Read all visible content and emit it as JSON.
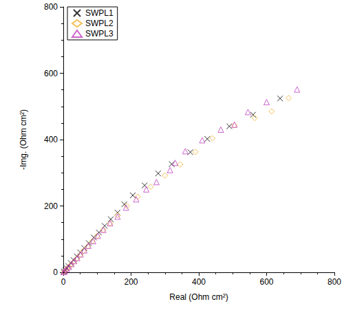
{
  "chart_data": {
    "type": "scatter",
    "x_label": "Real (Ohm cm²)",
    "y_label": "-Img. (Ohm cm²)",
    "xlim": [
      0,
      800
    ],
    "xticks": [
      0,
      200,
      400,
      600,
      800
    ],
    "ylim": [
      0,
      800
    ],
    "yticks": [
      0,
      200,
      400,
      600,
      800
    ],
    "grid": false,
    "legend": "upper left",
    "series": [
      {
        "name": "SWPL1",
        "color": "#000000",
        "marker": "x",
        "x": [
          1,
          3,
          6,
          10,
          15,
          22,
          30,
          40,
          50,
          62,
          75,
          90,
          105,
          122,
          140,
          160,
          180,
          205,
          240,
          280,
          320,
          375,
          425,
          490,
          560,
          640
        ],
        "values": [
          0.5,
          3,
          7,
          12,
          19,
          28,
          37,
          48,
          60,
          73,
          88,
          105,
          120,
          140,
          160,
          180,
          205,
          232,
          262,
          298,
          326,
          362,
          402,
          440,
          475,
          524
        ]
      },
      {
        "name": "SWPL2",
        "color": "#f0b030",
        "marker": "diamond",
        "x": [
          2,
          6,
          11,
          17,
          24,
          32,
          40,
          50,
          60,
          72,
          85,
          100,
          118,
          138,
          160,
          188,
          220,
          258,
          300,
          345,
          390,
          440,
          505,
          565,
          615,
          665
        ],
        "values": [
          1,
          6,
          11,
          17,
          24,
          33,
          42,
          53,
          65,
          78,
          93,
          110,
          128,
          148,
          172,
          200,
          228,
          258,
          292,
          325,
          363,
          404,
          443,
          465,
          485,
          525
        ]
      },
      {
        "name": "SWPL3",
        "color": "#c040c0",
        "marker": "triangle",
        "x": [
          1,
          5,
          10,
          16,
          24,
          32,
          41,
          51,
          62,
          74,
          88,
          102,
          118,
          138,
          160,
          185,
          215,
          245,
          275,
          315,
          330,
          360,
          410,
          465,
          505,
          545,
          600,
          690
        ],
        "values": [
          1,
          5,
          10,
          16,
          25,
          34,
          43,
          54,
          66,
          80,
          94,
          110,
          128,
          148,
          168,
          195,
          220,
          250,
          272,
          308,
          330,
          365,
          398,
          430,
          445,
          483,
          513,
          551
        ]
      }
    ]
  }
}
